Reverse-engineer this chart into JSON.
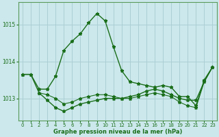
{
  "bg_color": "#cce8ec",
  "grid_color": "#aacfd4",
  "line_color": "#1a6e1a",
  "xlabel": "Graphe pression niveau de la mer (hPa)",
  "xlim": [
    -0.5,
    23.5
  ],
  "ylim": [
    1012.4,
    1015.6
  ],
  "yticks": [
    1013,
    1014,
    1015
  ],
  "ytick_labels": [
    "1013",
    "1014",
    "1015"
  ],
  "xticks": [
    0,
    1,
    2,
    3,
    4,
    5,
    6,
    7,
    8,
    9,
    10,
    11,
    12,
    13,
    14,
    15,
    16,
    17,
    18,
    19,
    20,
    21,
    22,
    23
  ],
  "series1_x": [
    0,
    1,
    2,
    3,
    4,
    5,
    6,
    7,
    8,
    9,
    10,
    11,
    12,
    13,
    14,
    15,
    16,
    17,
    18,
    19,
    20,
    21,
    22,
    23
  ],
  "series1_y": [
    1013.65,
    1013.65,
    1013.25,
    1013.25,
    1013.6,
    1014.3,
    1014.55,
    1014.75,
    1015.05,
    1015.3,
    1015.1,
    1014.4,
    1013.75,
    1013.45,
    1013.4,
    1013.35,
    1013.3,
    1013.35,
    1013.3,
    1013.05,
    1013.05,
    1012.8,
    1013.5,
    1013.85
  ],
  "series2_x": [
    0,
    1,
    2,
    3,
    4,
    5,
    6,
    7,
    8,
    9,
    10,
    11,
    12,
    13,
    14,
    15,
    16,
    17,
    18,
    19,
    20,
    21,
    22,
    23
  ],
  "series2_y": [
    1013.65,
    1013.65,
    1013.15,
    1012.95,
    1012.75,
    1012.65,
    1012.75,
    1012.85,
    1012.9,
    1012.95,
    1013.0,
    1013.0,
    1013.0,
    1013.05,
    1013.1,
    1013.2,
    1013.25,
    1013.2,
    1013.1,
    1013.0,
    1012.95,
    1012.95,
    1013.45,
    1013.85
  ],
  "series3_x": [
    2,
    3,
    4,
    5,
    6,
    7,
    8,
    9,
    10,
    11,
    12,
    13,
    14,
    15,
    16,
    17,
    18,
    19,
    20,
    21,
    22,
    23
  ],
  "series3_y": [
    1013.15,
    1013.1,
    1013.0,
    1012.85,
    1012.9,
    1013.0,
    1013.05,
    1013.1,
    1013.1,
    1013.05,
    1013.0,
    1013.0,
    1013.05,
    1013.1,
    1013.15,
    1013.1,
    1013.05,
    1012.9,
    1012.8,
    1012.75,
    1013.45,
    1013.85
  ]
}
